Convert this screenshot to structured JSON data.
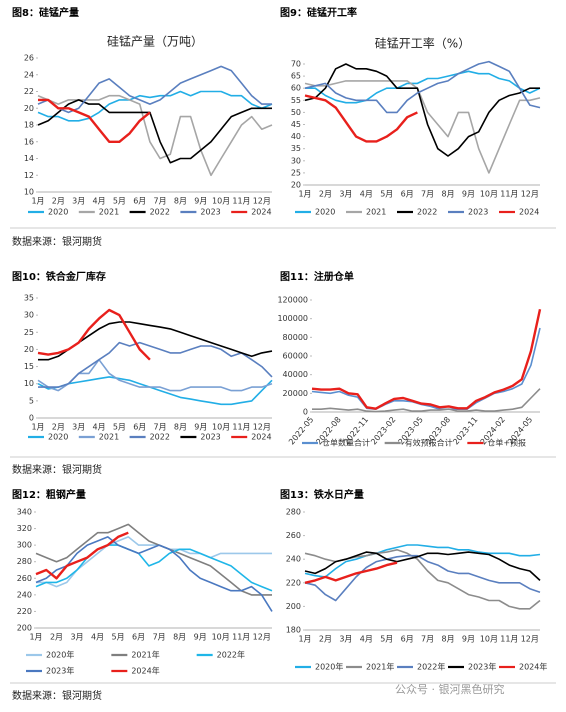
{
  "headers": [
    "图8：硅锰产量",
    "图9：硅锰开工率",
    "图10：铁合金厂库存",
    "图11：注册仓单",
    "图12：粗钢产量",
    "图13：铁水日产量"
  ],
  "sources": [
    "数据来源：银河期货",
    "数据来源：银河期货",
    "数据来源：银河期货"
  ],
  "watermark": "公众号 · 银河黑色研究",
  "chart_data": [
    {
      "type": "line",
      "title": "硅锰产量（万吨）",
      "categories": [
        "1月",
        null,
        "2月",
        null,
        "3月",
        null,
        "4月",
        null,
        "5月",
        null,
        "6月",
        null,
        "7月",
        null,
        "8月",
        null,
        "9月",
        null,
        "10月",
        null,
        "11月",
        null,
        "12月",
        null
      ],
      "ylim": [
        10,
        26
      ],
      "yticks": [
        10,
        12,
        14,
        16,
        18,
        20,
        22,
        24,
        26
      ],
      "series": [
        {
          "name": "2020",
          "color": "#22aee6",
          "values": [
            19.5,
            19,
            19,
            18.5,
            18.5,
            18.8,
            19.5,
            20.5,
            21,
            21,
            21.5,
            21.3,
            21.5,
            21.5,
            22,
            21.5,
            22,
            22,
            22,
            21.5,
            21.5,
            20.5,
            20,
            20.5
          ]
        },
        {
          "name": "2021",
          "color": "#a6a6a6",
          "values": [
            21.5,
            21,
            20.5,
            21,
            21,
            21,
            21,
            21.5,
            21.5,
            21,
            20.5,
            16,
            14,
            14.5,
            19,
            19,
            15,
            12,
            14,
            16,
            18,
            19,
            17.5,
            18
          ]
        },
        {
          "name": "2022",
          "color": "#000000",
          "values": [
            18,
            18.5,
            19.5,
            20.5,
            21,
            20.5,
            20.5,
            19.5,
            19.5,
            19.5,
            19.5,
            19.5,
            16,
            13.5,
            14,
            14,
            15,
            16,
            17.5,
            19,
            19.5,
            20,
            20,
            20
          ]
        },
        {
          "name": "2023",
          "color": "#5a7fbf",
          "values": [
            20.5,
            21,
            20,
            19.5,
            20,
            21.5,
            23,
            23.5,
            22.5,
            21.5,
            21,
            20.5,
            21,
            22,
            23,
            23.5,
            24,
            24.5,
            25,
            24.5,
            23,
            21.5,
            20.5,
            20.5
          ]
        },
        {
          "name": "2024",
          "color": "#e8201c",
          "values": [
            21,
            21,
            20,
            20,
            19.5,
            19,
            17.5,
            16,
            16,
            17,
            18.5,
            19.5,
            null,
            null,
            null,
            null,
            null,
            null,
            null,
            null,
            null,
            null,
            null,
            null
          ]
        }
      ]
    },
    {
      "type": "line",
      "title": "硅锰开工率（%）",
      "categories": [
        "1月",
        null,
        "2月",
        null,
        "3月",
        null,
        "4月",
        null,
        "5月",
        null,
        "6月",
        null,
        "7月",
        null,
        "8月",
        null,
        "9月",
        null,
        "10月",
        null,
        "11月",
        null,
        "12月",
        null
      ],
      "ylim": [
        20,
        70
      ],
      "yticks": [
        20,
        25,
        30,
        35,
        40,
        45,
        50,
        55,
        60,
        65,
        70
      ],
      "series": [
        {
          "name": "2020",
          "color": "#22aee6",
          "values": [
            60,
            60,
            57,
            55,
            54,
            54,
            55,
            58,
            60,
            60,
            62,
            62,
            64,
            64,
            65,
            66,
            67,
            66,
            66,
            64,
            63,
            60,
            58,
            60
          ]
        },
        {
          "name": "2021",
          "color": "#a6a6a6",
          "values": [
            62,
            61,
            61,
            62,
            63,
            63,
            63,
            63,
            63,
            63,
            63,
            60,
            50,
            45,
            40,
            50,
            50,
            35,
            25,
            35,
            45,
            55,
            55,
            56
          ]
        },
        {
          "name": "2022",
          "color": "#000000",
          "values": [
            55,
            56,
            60,
            68,
            70,
            68,
            68,
            67,
            65,
            60,
            60,
            60,
            45,
            35,
            32,
            35,
            40,
            42,
            50,
            55,
            57,
            58,
            60,
            60
          ]
        },
        {
          "name": "2023",
          "color": "#5a7fbf",
          "values": [
            60,
            61,
            62,
            58,
            56,
            55,
            55,
            55,
            50,
            50,
            55,
            58,
            60,
            62,
            63,
            66,
            68,
            70,
            71,
            69,
            67,
            60,
            53,
            52
          ]
        },
        {
          "name": "2024",
          "color": "#e8201c",
          "values": [
            57,
            56,
            55,
            52,
            46,
            40,
            38,
            38,
            40,
            43,
            48,
            50,
            null,
            null,
            null,
            null,
            null,
            null,
            null,
            null,
            null,
            null,
            null,
            null
          ]
        }
      ]
    },
    {
      "type": "line",
      "categories": [
        "1月",
        null,
        "2月",
        null,
        "3月",
        null,
        "4月",
        null,
        "5月",
        null,
        "6月",
        null,
        "7月",
        null,
        "8月",
        null,
        "9月",
        null,
        "10月",
        null,
        "11月",
        null,
        "12月",
        null
      ],
      "ylim": [
        0,
        35
      ],
      "yticks": [
        0,
        5,
        10,
        15,
        20,
        25,
        30,
        35
      ],
      "series": [
        {
          "name": "2020",
          "color": "#22aee6",
          "values": [
            10,
            8.5,
            9,
            10,
            10.5,
            11,
            11.5,
            12,
            11.5,
            11,
            10,
            9,
            8,
            7,
            6,
            5.5,
            5,
            4.5,
            4,
            4,
            4.5,
            5,
            8,
            11
          ]
        },
        {
          "name": "2021",
          "color": "#7aa0d4",
          "values": [
            11,
            9,
            8,
            10,
            13,
            13,
            17,
            13,
            11,
            10,
            9,
            9,
            9,
            8,
            8,
            9,
            9,
            9,
            9,
            8,
            8,
            9,
            9,
            10
          ]
        },
        {
          "name": "2022",
          "color": "#5a7fbf",
          "values": [
            9,
            9,
            9,
            10,
            13,
            15,
            17,
            19,
            22,
            21,
            22,
            21,
            20,
            19,
            19,
            20,
            21,
            21,
            20,
            18,
            19,
            17,
            15,
            12
          ]
        },
        {
          "name": "2023",
          "color": "#000000",
          "values": [
            17,
            17,
            18,
            20,
            22,
            24,
            26,
            27.5,
            28,
            28,
            27.5,
            27,
            26.5,
            26,
            25,
            24,
            23,
            22,
            21,
            20,
            19,
            18,
            19,
            19.5
          ]
        },
        {
          "name": "2024",
          "color": "#e8201c",
          "values": [
            19,
            18.5,
            19,
            20,
            22,
            26,
            29,
            31.5,
            30,
            25,
            20,
            17,
            null,
            null,
            null,
            null,
            null,
            null,
            null,
            null,
            null,
            null,
            null,
            null
          ]
        }
      ]
    },
    {
      "type": "line",
      "rotate": true,
      "categories": [
        "2022-05",
        null,
        null,
        "2022-08",
        null,
        null,
        "2022-11",
        null,
        null,
        "2023-02",
        null,
        null,
        "2023-05",
        null,
        null,
        "2023-08",
        null,
        null,
        "2023-11",
        null,
        null,
        "2024-02",
        null,
        null,
        "2024-05",
        null
      ],
      "ylim": [
        0,
        120000
      ],
      "yticks": [
        0,
        20000,
        40000,
        60000,
        80000,
        100000,
        120000
      ],
      "series": [
        {
          "name": "仓单数量合计",
          "color": "#5a8fd0",
          "values": [
            22000,
            21000,
            20000,
            22000,
            18000,
            16000,
            4000,
            3000,
            8000,
            12000,
            12000,
            11000,
            8000,
            6000,
            3000,
            3000,
            3000,
            3000,
            10000,
            15000,
            20000,
            22000,
            25000,
            30000,
            50000,
            90000
          ]
        },
        {
          "name": "有效预报合计",
          "color": "#8c8c8c",
          "values": [
            3000,
            3000,
            4000,
            3000,
            2000,
            3000,
            1000,
            500,
            1000,
            2000,
            3000,
            1000,
            1000,
            2000,
            2000,
            3000,
            1000,
            1000,
            2000,
            1000,
            1000,
            2000,
            3000,
            5000,
            15000,
            25000
          ]
        },
        {
          "name": "仓单+预报",
          "color": "#e8201c",
          "values": [
            25000,
            24000,
            24000,
            25000,
            20000,
            19000,
            5000,
            3500,
            9000,
            14000,
            15000,
            12000,
            9000,
            8000,
            5000,
            6000,
            4000,
            4000,
            12000,
            16000,
            21000,
            24000,
            28000,
            35000,
            65000,
            110000
          ]
        }
      ]
    },
    {
      "type": "line",
      "categories": [
        "1月",
        null,
        "2月",
        null,
        "3月",
        null,
        "4月",
        null,
        "5月",
        null,
        "6月",
        null,
        "7月",
        null,
        "8月",
        null,
        "9月",
        null,
        "10月",
        null,
        "11月",
        null,
        "12月",
        null
      ],
      "ylim": [
        200,
        340
      ],
      "yticks": [
        200,
        220,
        240,
        260,
        280,
        300,
        320,
        340
      ],
      "series": [
        {
          "name": "2020年",
          "color": "#9cc8ea",
          "values": [
            255,
            255,
            250,
            255,
            270,
            280,
            290,
            300,
            305,
            310,
            300,
            300,
            300,
            295,
            295,
            290,
            290,
            285,
            290,
            290,
            290,
            290,
            290,
            290
          ]
        },
        {
          "name": "2021年",
          "color": "#7f7f7f",
          "values": [
            290,
            285,
            280,
            285,
            295,
            305,
            315,
            315,
            320,
            325,
            315,
            305,
            300,
            295,
            290,
            285,
            280,
            275,
            265,
            255,
            245,
            240,
            240,
            240
          ]
        },
        {
          "name": "2022年",
          "color": "#1fb6e8",
          "values": [
            250,
            255,
            255,
            260,
            270,
            285,
            295,
            300,
            300,
            295,
            290,
            275,
            280,
            290,
            295,
            295,
            290,
            285,
            280,
            275,
            265,
            255,
            250,
            245
          ]
        },
        {
          "name": "2023年",
          "color": "#4a78c0",
          "values": [
            255,
            260,
            270,
            275,
            290,
            300,
            305,
            310,
            300,
            295,
            290,
            295,
            300,
            295,
            285,
            270,
            260,
            255,
            250,
            245,
            245,
            250,
            240,
            220
          ]
        },
        {
          "name": "2024年",
          "color": "#e8201c",
          "values": [
            265,
            270,
            260,
            275,
            280,
            285,
            295,
            300,
            310,
            315,
            null,
            null,
            null,
            null,
            null,
            null,
            null,
            null,
            null,
            null,
            null,
            null,
            null,
            null
          ]
        }
      ]
    },
    {
      "type": "line",
      "categories": [
        "1月",
        null,
        "2月",
        null,
        "3月",
        null,
        "4月",
        null,
        "5月",
        null,
        "6月",
        null,
        "7月",
        null,
        "8月",
        null,
        "9月",
        null,
        "10月",
        null,
        "11月",
        null,
        "12月",
        null
      ],
      "ylim": [
        180,
        280
      ],
      "yticks": [
        180,
        200,
        220,
        240,
        260,
        280
      ],
      "series": [
        {
          "name": "2020年",
          "color": "#22aee6",
          "values": [
            228,
            226,
            225,
            232,
            238,
            240,
            243,
            245,
            248,
            250,
            252,
            252,
            251,
            250,
            250,
            248,
            248,
            246,
            245,
            245,
            245,
            243,
            243,
            244
          ]
        },
        {
          "name": "2021年",
          "color": "#8c8c8c",
          "values": [
            245,
            243,
            240,
            238,
            240,
            242,
            243,
            245,
            246,
            248,
            245,
            240,
            230,
            222,
            220,
            215,
            210,
            208,
            205,
            205,
            200,
            198,
            198,
            205
          ]
        },
        {
          "name": "2022年",
          "color": "#5a7fbf",
          "values": [
            220,
            218,
            210,
            205,
            215,
            225,
            233,
            238,
            240,
            242,
            243,
            243,
            238,
            235,
            230,
            228,
            228,
            225,
            222,
            220,
            220,
            220,
            215,
            212
          ]
        },
        {
          "name": "2023年",
          "color": "#000000",
          "values": [
            230,
            228,
            232,
            238,
            240,
            243,
            246,
            245,
            240,
            238,
            240,
            242,
            245,
            245,
            244,
            245,
            246,
            245,
            244,
            240,
            235,
            232,
            230,
            222
          ]
        },
        {
          "name": "2024年",
          "color": "#e8201c",
          "values": [
            220,
            222,
            225,
            222,
            225,
            228,
            230,
            232,
            235,
            237,
            null,
            null,
            null,
            null,
            null,
            null,
            null,
            null,
            null,
            null,
            null,
            null,
            null,
            null
          ]
        }
      ]
    }
  ]
}
